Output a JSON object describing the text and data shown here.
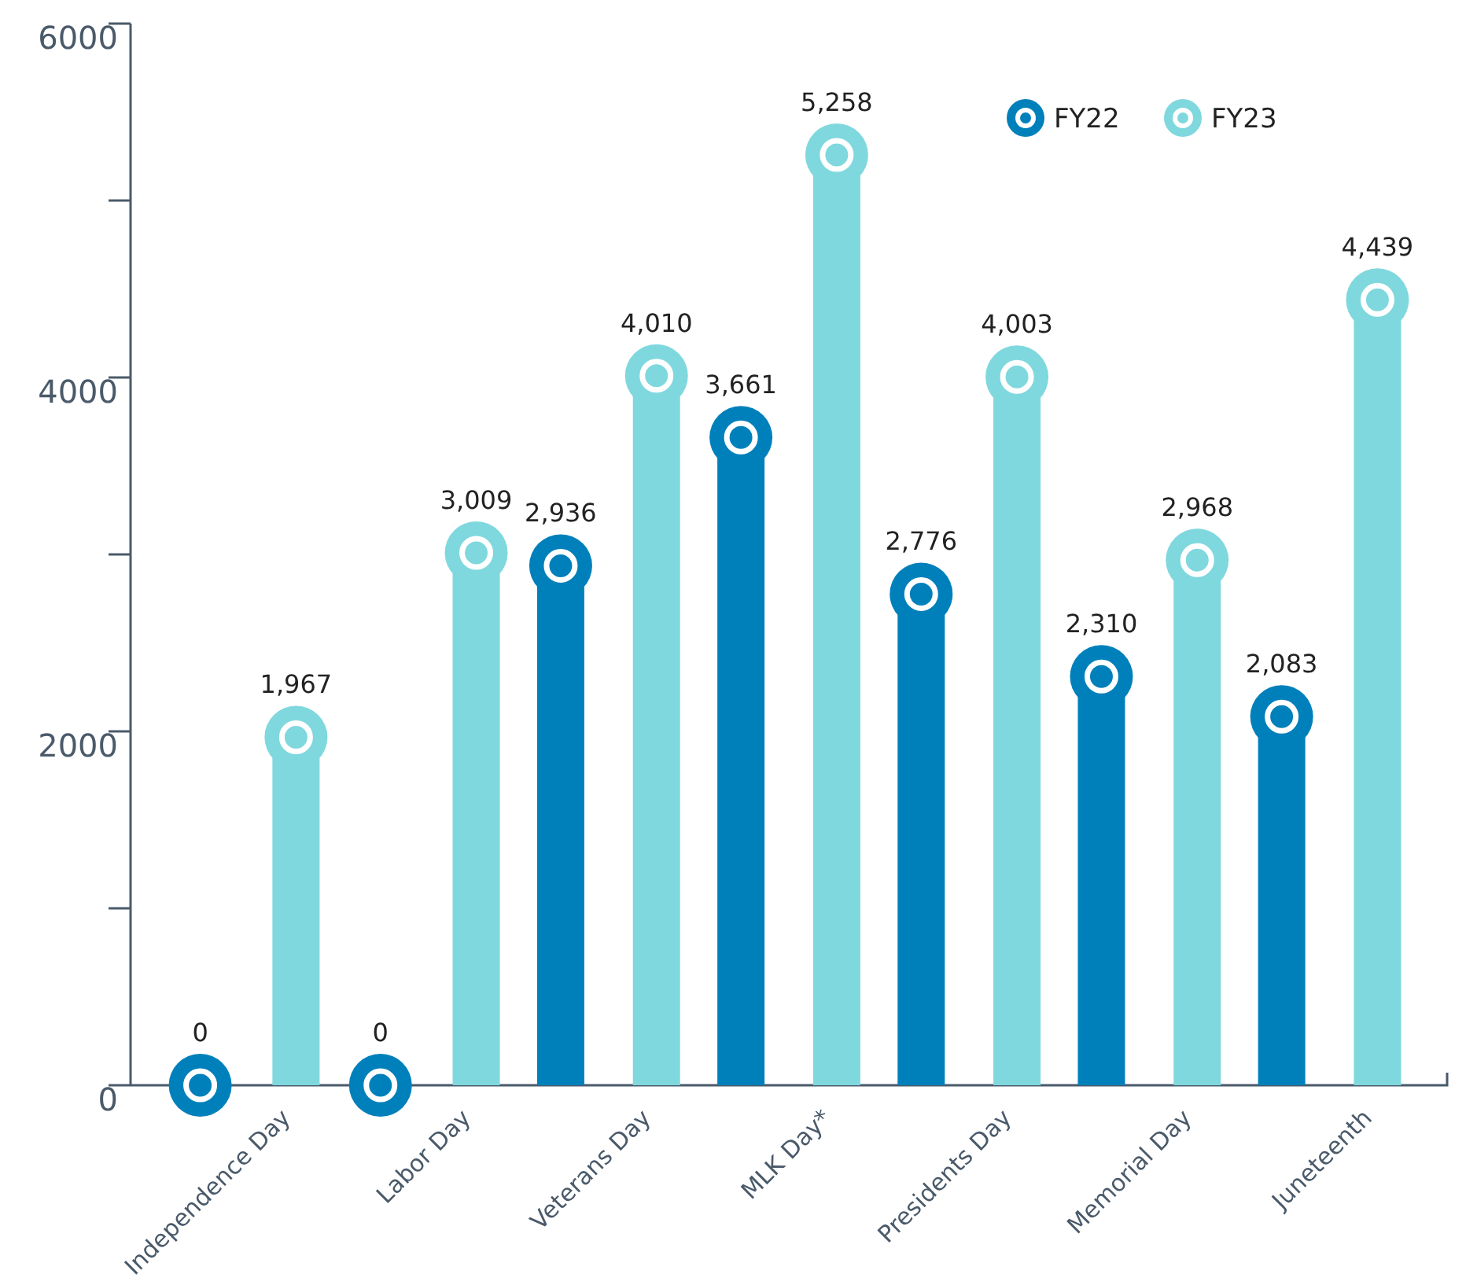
{
  "chart_data": {
    "type": "lollipop",
    "categories": [
      "Independence Day",
      "Labor Day",
      "Veterans Day",
      "MLK Day*",
      "Presidents Day",
      "Memorial Day",
      "Juneteenth"
    ],
    "series": [
      {
        "name": "FY22",
        "color": "#0080bb",
        "values": [
          0,
          0,
          2936,
          3661,
          2776,
          2310,
          2083
        ],
        "value_labels": [
          "0",
          "0",
          "2,936",
          "3,661",
          "2,776",
          "2,310",
          "2,083"
        ]
      },
      {
        "name": "FY23",
        "color": "#7fd8de",
        "values": [
          1967,
          3009,
          4010,
          5258,
          4003,
          2968,
          4439
        ],
        "value_labels": [
          "1,967",
          "3,009",
          "4,010",
          "5,258",
          "4,003",
          "2,968",
          "4,439"
        ]
      }
    ],
    "ylim": [
      0,
      6000
    ],
    "yticks": [
      0,
      {
        "value": 1000,
        "label": null
      },
      2000,
      {
        "value": 3000,
        "label": null
      },
      4000,
      {
        "value": 5000,
        "label": null
      },
      6000
    ],
    "grid": false,
    "legend": "top right",
    "marker": "circle"
  }
}
